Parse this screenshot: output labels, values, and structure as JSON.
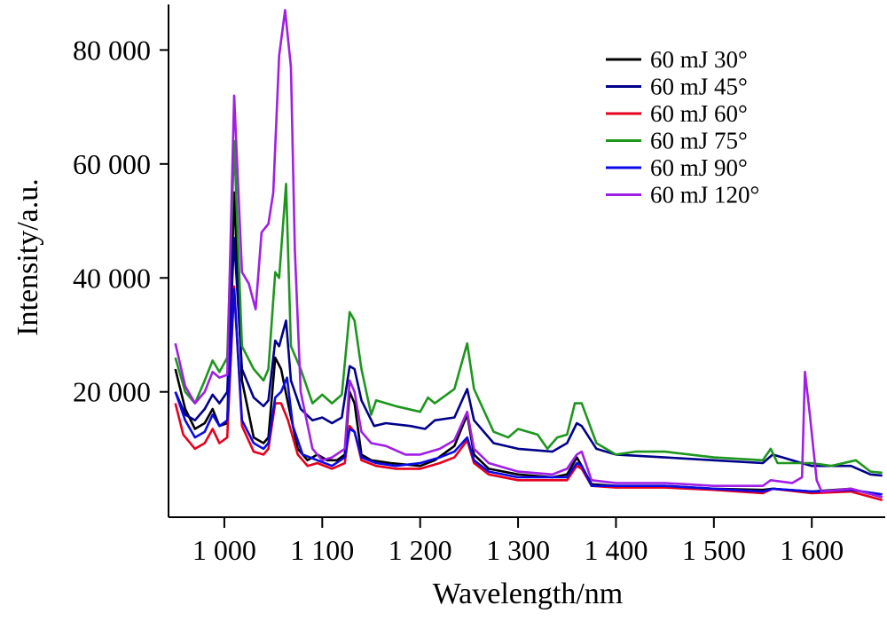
{
  "chart_data": {
    "type": "line",
    "xlabel": "Wavelength/nm",
    "ylabel": "Intensity/a.u.",
    "xlim": [
      943,
      1675
    ],
    "ylim": [
      -2000,
      88000
    ],
    "x_ticks": [
      {
        "value": 1000,
        "label": "1 000"
      },
      {
        "value": 1100,
        "label": "1 100"
      },
      {
        "value": 1200,
        "label": "1 200"
      },
      {
        "value": 1300,
        "label": "1 300"
      },
      {
        "value": 1400,
        "label": "1 400"
      },
      {
        "value": 1500,
        "label": "1 500"
      },
      {
        "value": 1600,
        "label": "1 600"
      }
    ],
    "y_ticks": [
      {
        "value": 20000,
        "label": "20 000"
      },
      {
        "value": 40000,
        "label": "40 000"
      },
      {
        "value": 60000,
        "label": "60 000"
      },
      {
        "value": 80000,
        "label": "80 000"
      }
    ],
    "grid": false,
    "legend_position": "top-right",
    "series": [
      {
        "name": "60 mJ 30°",
        "color": "#000000",
        "points": [
          [
            950,
            24000
          ],
          [
            960,
            17000
          ],
          [
            970,
            13500
          ],
          [
            980,
            14500
          ],
          [
            988,
            17000
          ],
          [
            995,
            14000
          ],
          [
            1003,
            14500
          ],
          [
            1010,
            55000
          ],
          [
            1018,
            22000
          ],
          [
            1030,
            12000
          ],
          [
            1040,
            11000
          ],
          [
            1045,
            12000
          ],
          [
            1052,
            26000
          ],
          [
            1058,
            24000
          ],
          [
            1065,
            18000
          ],
          [
            1075,
            10000
          ],
          [
            1085,
            8000
          ],
          [
            1095,
            9000
          ],
          [
            1105,
            8000
          ],
          [
            1115,
            8000
          ],
          [
            1123,
            9000
          ],
          [
            1128,
            20000
          ],
          [
            1133,
            18000
          ],
          [
            1140,
            9000
          ],
          [
            1150,
            8000
          ],
          [
            1170,
            7500
          ],
          [
            1200,
            7000
          ],
          [
            1215,
            8000
          ],
          [
            1235,
            10500
          ],
          [
            1248,
            16000
          ],
          [
            1255,
            9000
          ],
          [
            1270,
            6500
          ],
          [
            1300,
            5500
          ],
          [
            1335,
            5000
          ],
          [
            1350,
            5500
          ],
          [
            1360,
            8500
          ],
          [
            1365,
            7000
          ],
          [
            1375,
            3800
          ],
          [
            1400,
            3500
          ],
          [
            1450,
            3500
          ],
          [
            1500,
            3000
          ],
          [
            1550,
            2800
          ],
          [
            1560,
            3000
          ],
          [
            1600,
            2500
          ],
          [
            1640,
            3000
          ],
          [
            1672,
            1500
          ]
        ]
      },
      {
        "name": "60 mJ 45°",
        "color": "#00008B",
        "points": [
          [
            950,
            20000
          ],
          [
            960,
            16000
          ],
          [
            970,
            15000
          ],
          [
            980,
            17000
          ],
          [
            988,
            19500
          ],
          [
            995,
            18000
          ],
          [
            1003,
            20000
          ],
          [
            1010,
            47000
          ],
          [
            1018,
            24000
          ],
          [
            1030,
            19000
          ],
          [
            1040,
            17500
          ],
          [
            1045,
            18500
          ],
          [
            1052,
            29000
          ],
          [
            1056,
            28000
          ],
          [
            1063,
            32500
          ],
          [
            1068,
            22000
          ],
          [
            1078,
            17000
          ],
          [
            1090,
            15000
          ],
          [
            1100,
            15500
          ],
          [
            1110,
            14500
          ],
          [
            1120,
            15500
          ],
          [
            1128,
            24500
          ],
          [
            1133,
            24000
          ],
          [
            1140,
            18500
          ],
          [
            1153,
            14000
          ],
          [
            1165,
            14500
          ],
          [
            1190,
            14000
          ],
          [
            1205,
            13500
          ],
          [
            1215,
            15000
          ],
          [
            1235,
            15500
          ],
          [
            1248,
            20500
          ],
          [
            1255,
            15000
          ],
          [
            1275,
            11000
          ],
          [
            1300,
            10000
          ],
          [
            1335,
            9500
          ],
          [
            1350,
            11000
          ],
          [
            1360,
            14500
          ],
          [
            1365,
            14000
          ],
          [
            1380,
            10000
          ],
          [
            1400,
            9000
          ],
          [
            1450,
            8500
          ],
          [
            1500,
            8000
          ],
          [
            1550,
            7500
          ],
          [
            1560,
            9000
          ],
          [
            1600,
            7000
          ],
          [
            1640,
            7000
          ],
          [
            1660,
            5500
          ],
          [
            1672,
            5300
          ]
        ]
      },
      {
        "name": "60 mJ 60°",
        "color": "#E6001E",
        "points": [
          [
            950,
            18000
          ],
          [
            958,
            12500
          ],
          [
            970,
            10000
          ],
          [
            980,
            11000
          ],
          [
            988,
            13500
          ],
          [
            995,
            11000
          ],
          [
            1003,
            12000
          ],
          [
            1010,
            38500
          ],
          [
            1018,
            14000
          ],
          [
            1030,
            9500
          ],
          [
            1040,
            9000
          ],
          [
            1045,
            10000
          ],
          [
            1052,
            18000
          ],
          [
            1058,
            18000
          ],
          [
            1065,
            15000
          ],
          [
            1075,
            9000
          ],
          [
            1085,
            7000
          ],
          [
            1095,
            7500
          ],
          [
            1110,
            6500
          ],
          [
            1123,
            7500
          ],
          [
            1128,
            14000
          ],
          [
            1133,
            13000
          ],
          [
            1140,
            8000
          ],
          [
            1155,
            7000
          ],
          [
            1175,
            6500
          ],
          [
            1200,
            6500
          ],
          [
            1220,
            7500
          ],
          [
            1235,
            8500
          ],
          [
            1248,
            11500
          ],
          [
            1255,
            7500
          ],
          [
            1270,
            5500
          ],
          [
            1300,
            4500
          ],
          [
            1335,
            4500
          ],
          [
            1350,
            4500
          ],
          [
            1360,
            7000
          ],
          [
            1365,
            6500
          ],
          [
            1375,
            3500
          ],
          [
            1400,
            3200
          ],
          [
            1450,
            3200
          ],
          [
            1500,
            2800
          ],
          [
            1550,
            2200
          ],
          [
            1560,
            3000
          ],
          [
            1600,
            2200
          ],
          [
            1640,
            2500
          ],
          [
            1672,
            1000
          ]
        ]
      },
      {
        "name": "60 mJ 75°",
        "color": "#1E961E",
        "points": [
          [
            950,
            26000
          ],
          [
            960,
            20000
          ],
          [
            970,
            18000
          ],
          [
            980,
            22000
          ],
          [
            988,
            25500
          ],
          [
            995,
            23500
          ],
          [
            1003,
            26000
          ],
          [
            1010,
            64000
          ],
          [
            1018,
            28000
          ],
          [
            1030,
            24000
          ],
          [
            1040,
            22000
          ],
          [
            1045,
            24000
          ],
          [
            1052,
            41000
          ],
          [
            1056,
            40000
          ],
          [
            1063,
            56500
          ],
          [
            1068,
            28000
          ],
          [
            1078,
            24000
          ],
          [
            1090,
            18000
          ],
          [
            1100,
            19500
          ],
          [
            1110,
            18000
          ],
          [
            1120,
            19500
          ],
          [
            1128,
            34000
          ],
          [
            1133,
            32500
          ],
          [
            1140,
            24000
          ],
          [
            1150,
            16000
          ],
          [
            1155,
            18500
          ],
          [
            1175,
            17500
          ],
          [
            1200,
            16500
          ],
          [
            1208,
            19000
          ],
          [
            1215,
            18000
          ],
          [
            1235,
            20500
          ],
          [
            1248,
            28500
          ],
          [
            1255,
            20500
          ],
          [
            1275,
            13000
          ],
          [
            1290,
            12000
          ],
          [
            1300,
            13500
          ],
          [
            1320,
            12500
          ],
          [
            1330,
            10000
          ],
          [
            1340,
            12000
          ],
          [
            1350,
            12500
          ],
          [
            1358,
            18000
          ],
          [
            1365,
            18000
          ],
          [
            1380,
            11000
          ],
          [
            1400,
            9000
          ],
          [
            1420,
            9500
          ],
          [
            1450,
            9500
          ],
          [
            1500,
            8500
          ],
          [
            1550,
            8000
          ],
          [
            1558,
            10000
          ],
          [
            1565,
            7500
          ],
          [
            1600,
            7500
          ],
          [
            1620,
            7000
          ],
          [
            1645,
            8000
          ],
          [
            1660,
            6000
          ],
          [
            1672,
            5800
          ]
        ]
      },
      {
        "name": "60 mJ 90°",
        "color": "#0A0AE6",
        "points": [
          [
            950,
            20000
          ],
          [
            960,
            15000
          ],
          [
            970,
            12000
          ],
          [
            980,
            13000
          ],
          [
            988,
            16000
          ],
          [
            995,
            14000
          ],
          [
            1003,
            15000
          ],
          [
            1010,
            38000
          ],
          [
            1018,
            15000
          ],
          [
            1030,
            11000
          ],
          [
            1040,
            10000
          ],
          [
            1045,
            11000
          ],
          [
            1052,
            19000
          ],
          [
            1058,
            20000
          ],
          [
            1064,
            22500
          ],
          [
            1070,
            14000
          ],
          [
            1080,
            9000
          ],
          [
            1095,
            8000
          ],
          [
            1110,
            7000
          ],
          [
            1123,
            8500
          ],
          [
            1128,
            13500
          ],
          [
            1133,
            13000
          ],
          [
            1140,
            8500
          ],
          [
            1155,
            7500
          ],
          [
            1175,
            7000
          ],
          [
            1200,
            7500
          ],
          [
            1220,
            8500
          ],
          [
            1235,
            9500
          ],
          [
            1248,
            12000
          ],
          [
            1255,
            8000
          ],
          [
            1270,
            6000
          ],
          [
            1300,
            5000
          ],
          [
            1335,
            5000
          ],
          [
            1350,
            5000
          ],
          [
            1360,
            7500
          ],
          [
            1365,
            7000
          ],
          [
            1375,
            3500
          ],
          [
            1400,
            3500
          ],
          [
            1450,
            3500
          ],
          [
            1500,
            3000
          ],
          [
            1550,
            2500
          ],
          [
            1560,
            3000
          ],
          [
            1600,
            2500
          ],
          [
            1640,
            2800
          ],
          [
            1672,
            2000
          ]
        ]
      },
      {
        "name": "60 mJ 120°",
        "color": "#A01EE6",
        "points": [
          [
            950,
            28500
          ],
          [
            960,
            21000
          ],
          [
            970,
            18000
          ],
          [
            980,
            20000
          ],
          [
            988,
            23500
          ],
          [
            995,
            22500
          ],
          [
            1003,
            23000
          ],
          [
            1010,
            72000
          ],
          [
            1018,
            41000
          ],
          [
            1025,
            39000
          ],
          [
            1032,
            34500
          ],
          [
            1038,
            48000
          ],
          [
            1045,
            49500
          ],
          [
            1050,
            55000
          ],
          [
            1056,
            79000
          ],
          [
            1062,
            87000
          ],
          [
            1068,
            77000
          ],
          [
            1072,
            45000
          ],
          [
            1078,
            20000
          ],
          [
            1090,
            10000
          ],
          [
            1100,
            8000
          ],
          [
            1110,
            8500
          ],
          [
            1123,
            10000
          ],
          [
            1128,
            22000
          ],
          [
            1133,
            20000
          ],
          [
            1140,
            13000
          ],
          [
            1150,
            11000
          ],
          [
            1165,
            10500
          ],
          [
            1185,
            9000
          ],
          [
            1200,
            9000
          ],
          [
            1220,
            10000
          ],
          [
            1235,
            11500
          ],
          [
            1248,
            16500
          ],
          [
            1255,
            10000
          ],
          [
            1270,
            7500
          ],
          [
            1300,
            6000
          ],
          [
            1335,
            5500
          ],
          [
            1350,
            6500
          ],
          [
            1360,
            9000
          ],
          [
            1365,
            9500
          ],
          [
            1375,
            4500
          ],
          [
            1400,
            4000
          ],
          [
            1450,
            4000
          ],
          [
            1500,
            3500
          ],
          [
            1550,
            3500
          ],
          [
            1558,
            4500
          ],
          [
            1580,
            4000
          ],
          [
            1590,
            5000
          ],
          [
            1593,
            23500
          ],
          [
            1598,
            16000
          ],
          [
            1605,
            4500
          ],
          [
            1610,
            2500
          ],
          [
            1640,
            3000
          ],
          [
            1672,
            1500
          ]
        ]
      }
    ]
  }
}
